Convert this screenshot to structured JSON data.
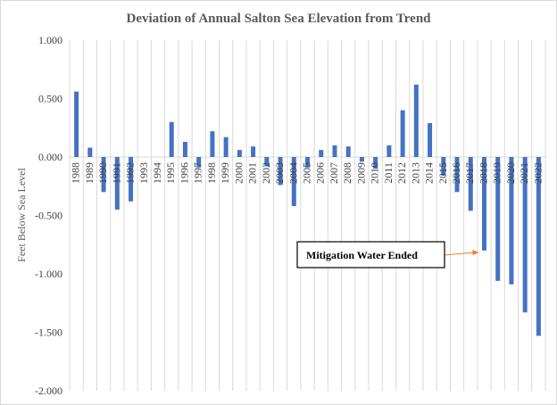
{
  "chart_data": {
    "type": "bar",
    "title": "Deviation of Annual Salton Sea Elevation from Trend",
    "ylabel": "Feet Below Sea Level",
    "xlabel": "",
    "ylim": [
      -2.0,
      1.0
    ],
    "yticks": [
      "-2.000",
      "-1.500",
      "-1.000",
      "-0.500",
      "0.000",
      "0.500",
      "1.000"
    ],
    "grid": "vertical",
    "bar_color": "#4472c4",
    "categories": [
      "1988",
      "1989",
      "1990",
      "1991",
      "1992",
      "1993",
      "1994",
      "1995",
      "1996",
      "1997",
      "1998",
      "1999",
      "2000",
      "2001",
      "2002",
      "2003",
      "2004",
      "2005",
      "2006",
      "2007",
      "2008",
      "2009",
      "2010",
      "2011",
      "2012",
      "2013",
      "2014",
      "2015",
      "2016",
      "2017",
      "2018",
      "2019",
      "2020",
      "2021",
      "2022"
    ],
    "values": [
      0.56,
      0.08,
      -0.3,
      -0.45,
      -0.38,
      0.0,
      0.0,
      0.3,
      0.13,
      -0.09,
      0.22,
      0.17,
      0.06,
      0.09,
      -0.08,
      -0.24,
      -0.42,
      -0.09,
      0.06,
      0.1,
      0.09,
      -0.04,
      -0.1,
      0.1,
      0.4,
      0.62,
      0.29,
      -0.16,
      -0.3,
      -0.46,
      -0.8,
      -1.06,
      -1.09,
      -1.33,
      -1.53
    ],
    "annotation": {
      "text": "Mitigation  Water Ended",
      "target_category": "2018",
      "target_value": -0.8,
      "arrow_color": "#ed7d31"
    }
  }
}
